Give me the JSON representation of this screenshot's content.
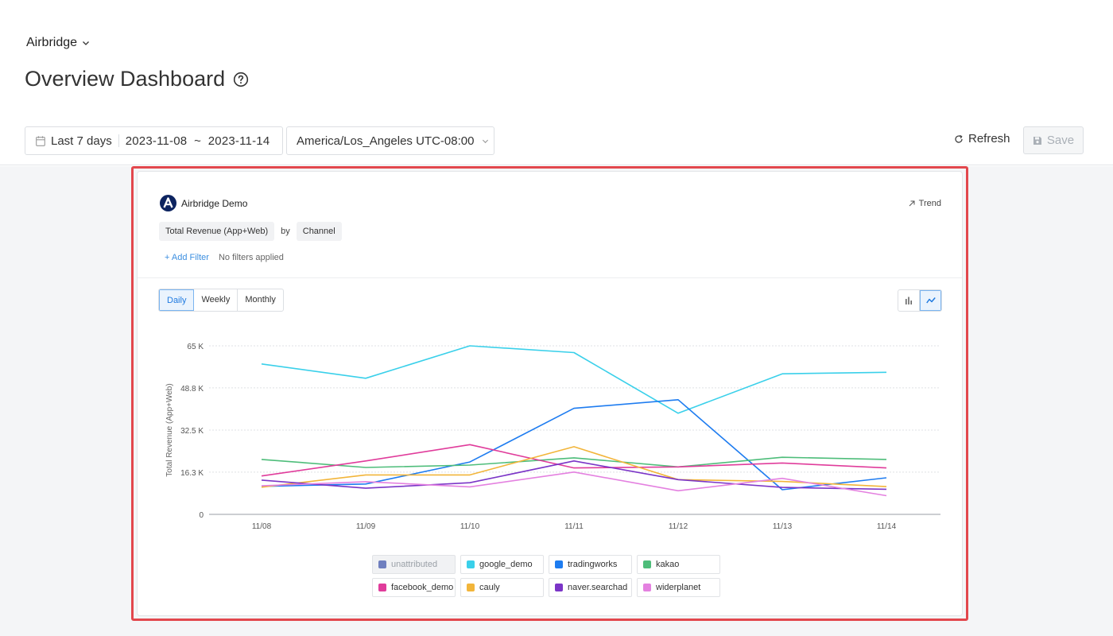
{
  "header": {
    "app_name": "Airbridge",
    "page_title": "Overview Dashboard"
  },
  "toolbar": {
    "date_preset": "Last 7 days",
    "date_range": "2023-11-08  ~  2023-11-14",
    "timezone": "America/Los_Angeles UTC-08:00",
    "refresh_label": "Refresh",
    "save_label": "Save"
  },
  "card": {
    "app_label": "Airbridge Demo",
    "trend_label": "Trend",
    "metric": "Total Revenue (App+Web)",
    "by_label": "by",
    "group_by": "Channel",
    "add_filter_label": "+ Add Filter",
    "filter_status": "No filters applied",
    "periods": [
      "Daily",
      "Weekly",
      "Monthly"
    ],
    "active_period": "Daily"
  },
  "chart_data": {
    "type": "line",
    "ylabel": "Total Revenue (App+Web)",
    "ylim": [
      0,
      65000
    ],
    "y_ticks": [
      {
        "value": 0,
        "label": "0"
      },
      {
        "value": 16300,
        "label": "16.3 K"
      },
      {
        "value": 32500,
        "label": "32.5 K"
      },
      {
        "value": 48800,
        "label": "48.8 K"
      },
      {
        "value": 65000,
        "label": "65 K"
      }
    ],
    "categories": [
      "11/08",
      "11/09",
      "11/10",
      "11/11",
      "11/12",
      "11/13",
      "11/14"
    ],
    "grid": true,
    "legend_position": "bottom",
    "series": [
      {
        "name": "unattributed",
        "color": "#6f7fbf",
        "hidden": true,
        "values": [
          null,
          null,
          null,
          null,
          null,
          null,
          null
        ]
      },
      {
        "name": "google_demo",
        "color": "#3ad0ea",
        "values": [
          58000,
          52500,
          65000,
          62400,
          39000,
          54200,
          54800
        ]
      },
      {
        "name": "tradingworks",
        "color": "#1e7cf0",
        "values": [
          10800,
          11700,
          20200,
          40900,
          44200,
          9500,
          14100
        ]
      },
      {
        "name": "kakao",
        "color": "#4ebd7a",
        "values": [
          21200,
          18100,
          19000,
          21800,
          18300,
          22000,
          21200
        ]
      },
      {
        "name": "facebook_demo",
        "color": "#e03c9b",
        "values": [
          14800,
          20600,
          26900,
          17900,
          18300,
          19800,
          17900
        ]
      },
      {
        "name": "cauly",
        "color": "#f2b53a",
        "values": [
          10500,
          15200,
          15200,
          26100,
          13400,
          12700,
          10700
        ]
      },
      {
        "name": "naver.searchad",
        "color": "#7b35c7",
        "values": [
          13200,
          10100,
          12200,
          20600,
          13400,
          10400,
          9700
        ]
      },
      {
        "name": "widerplanet",
        "color": "#e481e0",
        "values": [
          11000,
          12600,
          10600,
          16300,
          9100,
          13900,
          7200
        ]
      }
    ]
  }
}
